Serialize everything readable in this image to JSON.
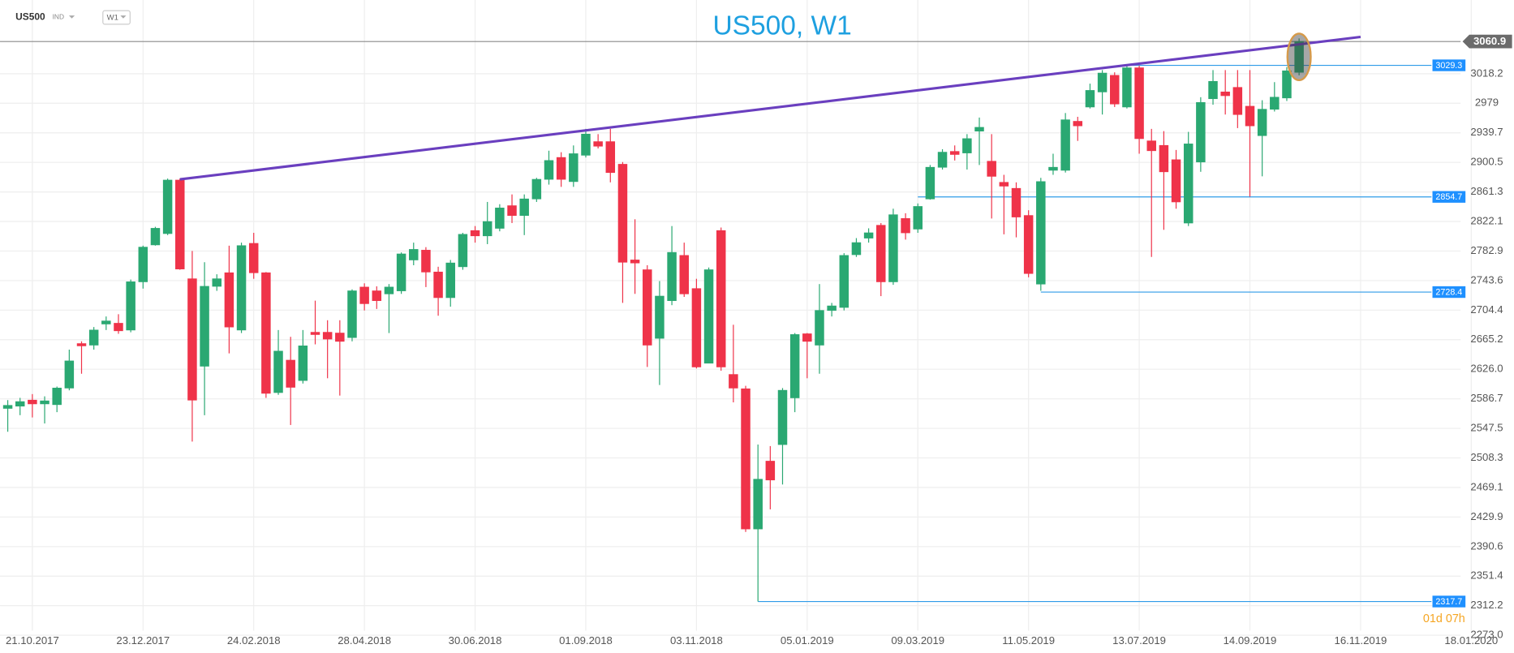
{
  "chart_data": {
    "type": "candlestick",
    "title": "US500, W1",
    "symbol": "US500",
    "symbol_type": "IND",
    "timeframe": "W1",
    "countdown": "01d 07h",
    "up_color": "#2aa872",
    "down_color": "#ef3349",
    "grid": true,
    "open": [
      2574,
      2577,
      2585,
      2580,
      2579,
      2601,
      2660,
      2658,
      2686,
      2687,
      2678,
      2742,
      2791,
      2806,
      2877,
      2746,
      2630,
      2736,
      2754,
      2678,
      2793,
      2754,
      2595,
      2638,
      2611,
      2675,
      2675,
      2674,
      2668,
      2735,
      2730,
      2726,
      2730,
      2771,
      2784,
      2755,
      2721,
      2762,
      2810,
      2803,
      2813,
      2843,
      2830,
      2852,
      2878,
      2907,
      2875,
      2910,
      2928,
      2928,
      2898,
      2771,
      2758,
      2667,
      2717,
      2777,
      2733,
      2634,
      2810,
      2619,
      2600,
      2414,
      2504,
      2526,
      2588,
      2673,
      2658,
      2704,
      2708,
      2778,
      2800,
      2817,
      2742,
      2826,
      2812,
      2852,
      2894,
      2915,
      2913,
      2942,
      2902,
      2874,
      2866,
      2830,
      2739,
      2890,
      2890,
      2955,
      2974,
      2994,
      3016,
      2974,
      3026,
      2929,
      2923,
      2904,
      2820,
      2901,
      2985,
      2994,
      3000,
      2975,
      2936,
      2971,
      2986,
      3020
    ],
    "high": [
      2585,
      2588,
      2593,
      2590,
      2603,
      2652,
      2663,
      2682,
      2696,
      2699,
      2745,
      2790,
      2815,
      2879,
      2879,
      2783,
      2768,
      2752,
      2790,
      2794,
      2807,
      2755,
      2678,
      2669,
      2678,
      2717,
      2691,
      2691,
      2732,
      2740,
      2736,
      2739,
      2781,
      2794,
      2788,
      2762,
      2771,
      2807,
      2816,
      2848,
      2845,
      2858,
      2858,
      2880,
      2916,
      2914,
      2923,
      2945,
      2938,
      2945,
      2901,
      2825,
      2764,
      2743,
      2816,
      2794,
      2746,
      2761,
      2814,
      2685,
      2604,
      2526,
      2524,
      2601,
      2674,
      2674,
      2739,
      2714,
      2780,
      2800,
      2813,
      2820,
      2839,
      2833,
      2846,
      2897,
      2918,
      2923,
      2938,
      2960,
      2938,
      2884,
      2874,
      2837,
      2880,
      2912,
      2966,
      2961,
      3005,
      3023,
      3020,
      3029.3,
      3029,
      2945,
      2942,
      2917,
      2941,
      2987,
      3023,
      3023,
      3023,
      3023,
      2983,
      3007,
      3027,
      3065
    ],
    "low": [
      2543,
      2565,
      2562,
      2554,
      2569,
      2598,
      2620,
      2652,
      2678,
      2673,
      2675,
      2733,
      2790,
      2804,
      2758,
      2530,
      2565,
      2730,
      2647,
      2674,
      2746,
      2588,
      2592,
      2552,
      2607,
      2659,
      2614,
      2591,
      2663,
      2704,
      2706,
      2674,
      2726,
      2764,
      2735,
      2697,
      2709,
      2758,
      2794,
      2792,
      2809,
      2820,
      2804,
      2848,
      2871,
      2868,
      2868,
      2907,
      2919,
      2874,
      2714,
      2726,
      2629,
      2605,
      2711,
      2722,
      2627,
      2634,
      2624,
      2582,
      2410,
      2317.7,
      2440,
      2473,
      2569,
      2614,
      2620,
      2696,
      2704,
      2775,
      2794,
      2723,
      2738,
      2798,
      2807,
      2851,
      2891,
      2903,
      2891,
      2897,
      2826,
      2805,
      2801,
      2748,
      2730,
      2884,
      2887,
      2929,
      2972,
      2964,
      2974,
      2972,
      2912,
      2775,
      2811,
      2839,
      2816,
      2888,
      2977,
      2964,
      2946,
      2855,
      2882,
      2968,
      2982,
      3016
    ],
    "close": [
      2578,
      2583,
      2580,
      2584,
      2601,
      2637,
      2657,
      2678,
      2690,
      2677,
      2742,
      2788,
      2813,
      2877,
      2759,
      2585,
      2736,
      2746,
      2682,
      2790,
      2754,
      2594,
      2650,
      2602,
      2657,
      2672,
      2666,
      2663,
      2730,
      2713,
      2717,
      2735,
      2779,
      2785,
      2755,
      2721,
      2767,
      2805,
      2803,
      2822,
      2840,
      2830,
      2852,
      2878,
      2903,
      2878,
      2912,
      2938,
      2922,
      2887,
      2768,
      2767,
      2658,
      2723,
      2781,
      2726,
      2629,
      2758,
      2629,
      2601,
      2414,
      2480,
      2479,
      2598,
      2672,
      2663,
      2704,
      2710,
      2777,
      2794,
      2807,
      2742,
      2831,
      2807,
      2842,
      2894,
      2914,
      2911,
      2932,
      2947,
      2882,
      2869,
      2828,
      2753,
      2875,
      2894,
      2957,
      2949,
      2996,
      3019,
      2978,
      3026,
      2932,
      2916,
      2888,
      2848,
      2925,
      2980,
      3008,
      2989,
      2964,
      2949,
      2971,
      2987,
      3022,
      3060.9
    ],
    "xlim": [
      -0.63,
      122
    ],
    "xticks": [
      {
        "value": 2,
        "label": "21.10.2017"
      },
      {
        "value": 11,
        "label": "23.12.2017"
      },
      {
        "value": 20,
        "label": "24.02.2018"
      },
      {
        "value": 29,
        "label": "28.04.2018"
      },
      {
        "value": 38,
        "label": "30.06.2018"
      },
      {
        "value": 47,
        "label": "01.09.2018"
      },
      {
        "value": 56,
        "label": "03.11.2018"
      },
      {
        "value": 65,
        "label": "05.01.2019"
      },
      {
        "value": 74,
        "label": "09.03.2019"
      },
      {
        "value": 83,
        "label": "11.05.2019"
      },
      {
        "value": 92,
        "label": "13.07.2019"
      },
      {
        "value": 101,
        "label": "14.09.2019"
      },
      {
        "value": 110,
        "label": "16.11.2019"
      },
      {
        "value": 119,
        "label": "18.01.2020"
      }
    ],
    "ylim": [
      2279,
      3116
    ],
    "yticks": [
      3018.2,
      2979.0,
      2939.7,
      2900.5,
      2861.3,
      2822.1,
      2782.9,
      2743.6,
      2704.4,
      2665.2,
      {
        "value": 2626,
        "label": "2626.0"
      },
      2586.7,
      2547.5,
      2508.3,
      2469.1,
      2429.9,
      2390.6,
      2351.4,
      2312.2,
      {
        "value": 2273,
        "label": "2273.0"
      }
    ],
    "levels": [
      {
        "value": 3029.3,
        "from": 91
      },
      {
        "value": 2854.7,
        "from": 74
      },
      {
        "value": 2728.4,
        "from": 84
      },
      {
        "value": 2317.7,
        "from": 61
      }
    ],
    "level_color": "#2f9be8",
    "trendline": {
      "x": [
        14,
        110
      ],
      "y": [
        2878,
        3067
      ],
      "color": "#6a3fbf"
    }
  }
}
